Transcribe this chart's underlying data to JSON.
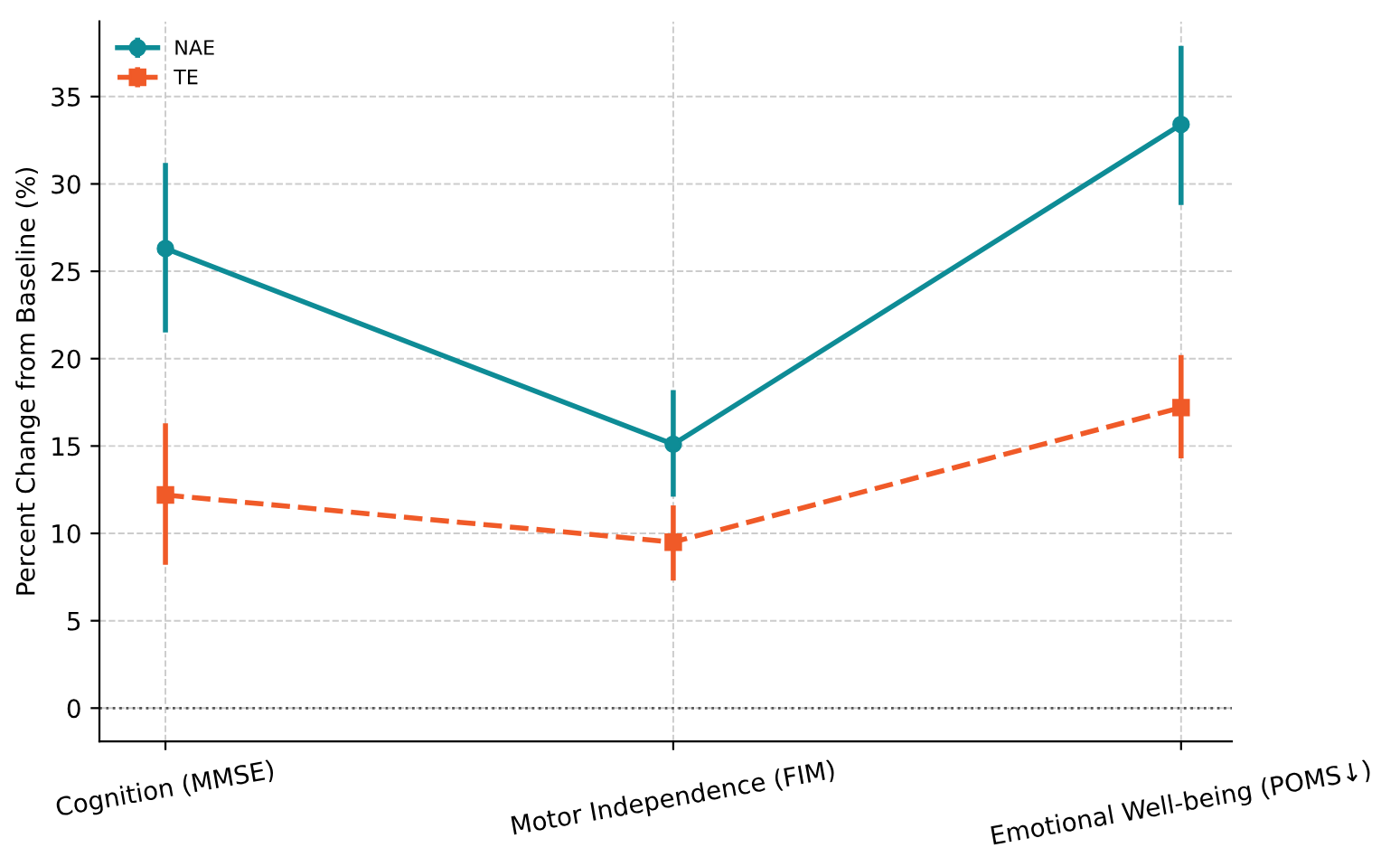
{
  "chart_data": {
    "type": "line",
    "ylabel": "Percent Change from Baseline (%)",
    "categories": [
      "Cognition (MMSE)",
      "Motor Independence (FIM)",
      "Emotional Well-being (POMS↓)"
    ],
    "series": [
      {
        "name": "NAE",
        "color": "#0e8c96",
        "values": [
          26.3,
          15.1,
          33.4
        ],
        "errors": [
          [
            21.5,
            31.2
          ],
          [
            12.1,
            18.2
          ],
          [
            28.8,
            37.9
          ]
        ],
        "marker": "circle",
        "line_style": "solid"
      },
      {
        "name": "TE",
        "color": "#f05a28",
        "values": [
          12.2,
          9.5,
          17.2
        ],
        "errors": [
          [
            8.2,
            16.3
          ],
          [
            7.3,
            11.6
          ],
          [
            14.3,
            20.2
          ]
        ],
        "marker": "square",
        "line_style": "dashed"
      }
    ],
    "ylim": [
      -1.9,
      39.3
    ],
    "yticks": [
      0,
      5,
      10,
      15,
      20,
      25,
      30,
      35
    ],
    "ref_lines": [
      {
        "axis": "y",
        "value": 0,
        "label": null,
        "color": "#555555",
        "line_style": "dotted"
      }
    ],
    "grid": true,
    "legend": "top left"
  }
}
